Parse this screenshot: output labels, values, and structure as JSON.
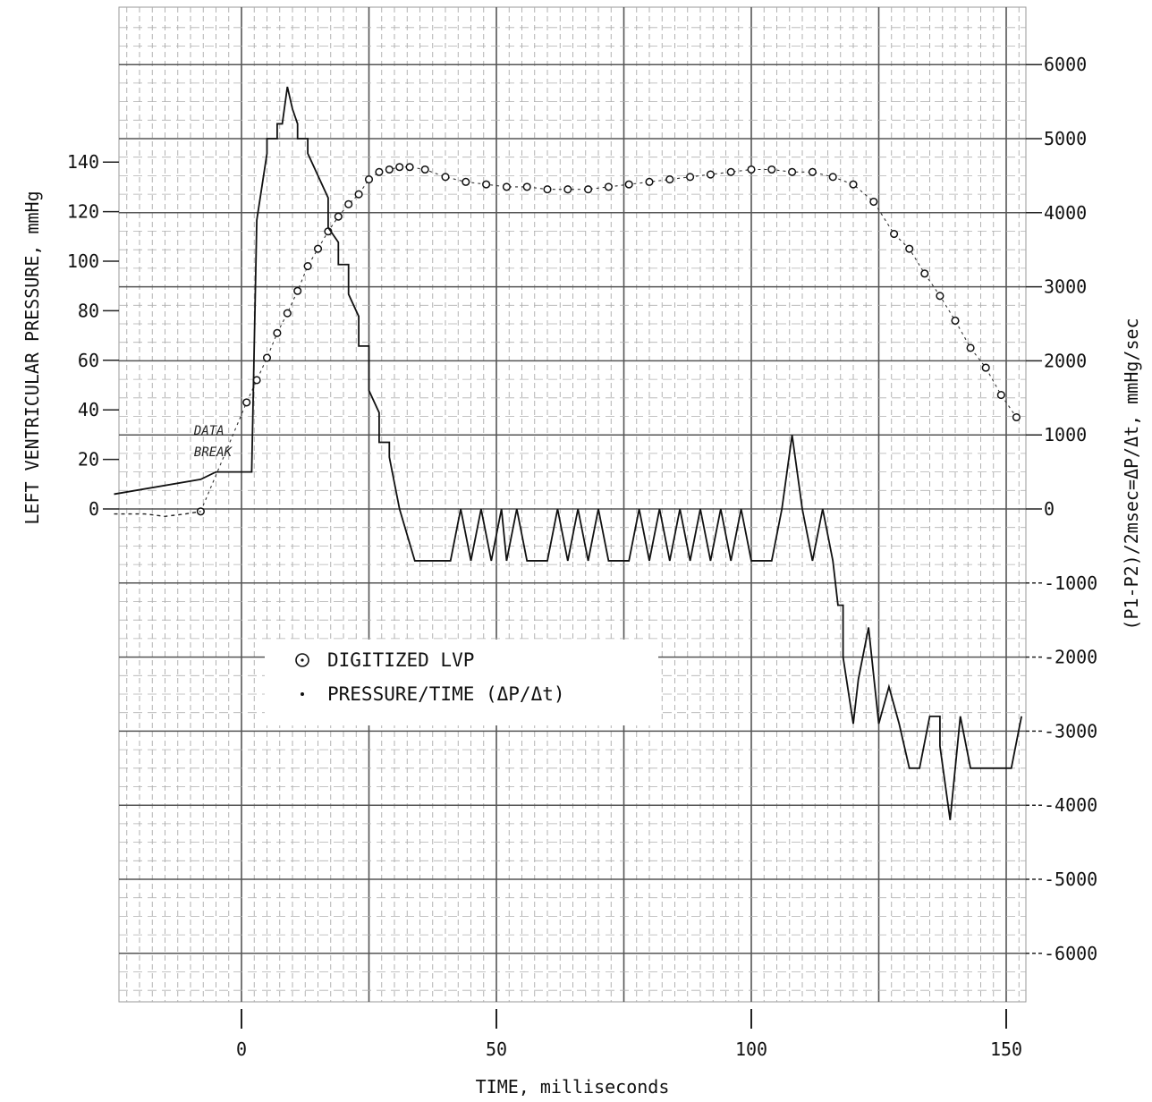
{
  "chart_data": {
    "type": "line",
    "xlabel": "TIME, milliseconds",
    "ylabel_left": "LEFT VENTRICULAR PRESSURE, mmHg",
    "ylabel_right": "(P1-P2)/2msec=ΔP/Δt, mmHg/sec",
    "xlim": [
      -25,
      157
    ],
    "ylim_left": [
      0,
      140
    ],
    "ylim_right": [
      -6000,
      6000
    ],
    "x_ticks": [
      0,
      50,
      100,
      150
    ],
    "y_left_ticks": [
      0,
      20,
      40,
      60,
      80,
      100,
      120,
      140
    ],
    "y_right_ticks": [
      6000,
      5000,
      4000,
      3000,
      2000,
      1000,
      0,
      -1000,
      -2000,
      -3000,
      -4000,
      -5000,
      -6000
    ],
    "y_right_tick_labels": [
      "6000",
      "5000",
      "4000",
      "3000",
      "2000",
      "1000",
      "0",
      "-1000",
      "-2000",
      "-3000",
      "-4000",
      "-5000",
      "-6000"
    ],
    "grid": true,
    "legend": {
      "position": "center-left",
      "entries": [
        "DIGITIZED LVP",
        "PRESSURE/TIME (ΔP/Δt)"
      ]
    },
    "annotation": {
      "lines": [
        "DATA",
        "BREAK"
      ],
      "x": -3,
      "y": 25
    },
    "series": [
      {
        "name": "DIGITIZED LVP",
        "axis": "left",
        "style": "circles",
        "x": [
          -8,
          1,
          3,
          5,
          7,
          9,
          11,
          13,
          15,
          17,
          19,
          21,
          23,
          25,
          27,
          29,
          31,
          33,
          36,
          40,
          44,
          48,
          52,
          56,
          60,
          64,
          68,
          72,
          76,
          80,
          84,
          88,
          92,
          96,
          100,
          104,
          108,
          112,
          116,
          120,
          124,
          128,
          131,
          134,
          137,
          140,
          143,
          146,
          149,
          152
        ],
        "y": [
          -1,
          43,
          52,
          61,
          71,
          79,
          88,
          98,
          105,
          112,
          118,
          123,
          127,
          133,
          136,
          137,
          138,
          138,
          137,
          134,
          132,
          131,
          130,
          130,
          129,
          129,
          129,
          130,
          131,
          132,
          133,
          134,
          135,
          136,
          137,
          137,
          136,
          136,
          134,
          131,
          124,
          111,
          105,
          95,
          86,
          76,
          65,
          57,
          46,
          37
        ]
      },
      {
        "name": "PRESSURE/TIME (ΔP/Δt)",
        "axis": "right",
        "style": "step-line",
        "x": [
          -25,
          -8,
          -5,
          2,
          3,
          5,
          5,
          7,
          7,
          8,
          9,
          10,
          11,
          11,
          13,
          13,
          15,
          17,
          17,
          19,
          19,
          21,
          21,
          23,
          23,
          25,
          25,
          27,
          27,
          29,
          29,
          31,
          34,
          36,
          39,
          41,
          43,
          45,
          47,
          49,
          51,
          52,
          54,
          56,
          58,
          60,
          62,
          64,
          66,
          68,
          70,
          72,
          74,
          76,
          78,
          80,
          82,
          84,
          86,
          88,
          90,
          92,
          94,
          96,
          98,
          100,
          102,
          104,
          106,
          108,
          110,
          112,
          114,
          116,
          117,
          118,
          118,
          120,
          120,
          121,
          123,
          125,
          127,
          127,
          129,
          129,
          131,
          133,
          135,
          137,
          137,
          139,
          141,
          143,
          145,
          147,
          149,
          151,
          153
        ],
        "y": [
          200,
          400,
          500,
          500,
          3900,
          4800,
          5000,
          5000,
          5200,
          5200,
          5700,
          5400,
          5200,
          5000,
          5000,
          4800,
          4500,
          4200,
          3800,
          3600,
          3300,
          3300,
          2900,
          2600,
          2200,
          2200,
          1600,
          1300,
          900,
          900,
          700,
          0,
          -700,
          -700,
          -700,
          -700,
          0,
          -700,
          0,
          -700,
          0,
          -700,
          0,
          -700,
          -700,
          -700,
          0,
          -700,
          0,
          -700,
          0,
          -700,
          -700,
          -700,
          0,
          -700,
          0,
          -700,
          0,
          -700,
          0,
          -700,
          0,
          -700,
          0,
          -700,
          -700,
          -700,
          0,
          1000,
          0,
          -700,
          0,
          -700,
          -1300,
          -1300,
          -2000,
          -2900,
          -2900,
          -2300,
          -1600,
          -2900,
          -2400,
          -2400,
          -2900,
          -2900,
          -3500,
          -3500,
          -2800,
          -2800,
          -3200,
          -4200,
          -2800,
          -3500,
          -3500,
          -3500,
          -3500,
          -3500,
          -2800
        ]
      },
      {
        "name": "",
        "axis": "left",
        "style": "dotted",
        "x": [
          -25,
          -19,
          -15,
          -11,
          -8
        ],
        "y": [
          -2,
          -2,
          -3,
          -2,
          -1
        ]
      }
    ]
  }
}
